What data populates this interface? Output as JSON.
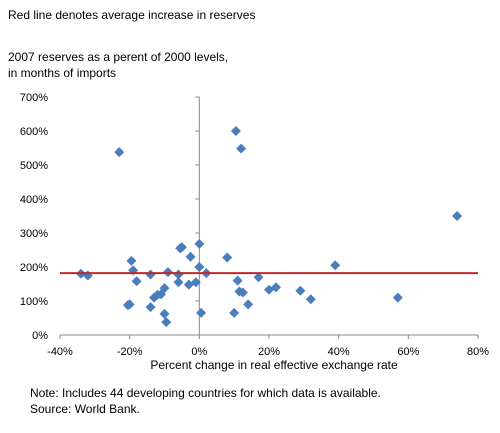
{
  "header": {
    "subtitle": "Red line denotes average increase in reserves",
    "ylabel_line1": "2007 reserves as a perent of 2000 levels,",
    "ylabel_line2": "in months of imports"
  },
  "footer": {
    "note": "Note: Includes 44 developing countries for which data is available.",
    "source": "Source: World Bank."
  },
  "colors": {
    "marker": "#4a7ebb",
    "average_line": "#c0282b",
    "axis": "#888888"
  },
  "chart_data": {
    "type": "scatter",
    "title": "",
    "subtitle": "Red line denotes average increase in reserves",
    "xlabel": "Percent change in real effective exchange rate",
    "ylabel": "2007 reserves as a perent of 2000 levels, in months of imports",
    "xlim": [
      -40,
      80
    ],
    "ylim": [
      0,
      700
    ],
    "x_ticks": [
      -40,
      -20,
      0,
      20,
      40,
      60,
      80
    ],
    "y_ticks": [
      0,
      100,
      200,
      300,
      400,
      500,
      600,
      700
    ],
    "x_tick_labels": [
      "-40%",
      "-20%",
      "0%",
      "20%",
      "40%",
      "60%",
      "80%"
    ],
    "y_tick_labels": [
      "0%",
      "100%",
      "200%",
      "300%",
      "400%",
      "500%",
      "600%",
      "700%"
    ],
    "grid": false,
    "average_line": {
      "y": 182
    },
    "series": [
      {
        "points": [
          [
            -34,
            180
          ],
          [
            -32,
            175
          ],
          [
            -23,
            538
          ],
          [
            -20,
            90
          ],
          [
            -20.5,
            88
          ],
          [
            -19.5,
            218
          ],
          [
            -19,
            190
          ],
          [
            -18,
            158
          ],
          [
            -14,
            82
          ],
          [
            -14,
            178
          ],
          [
            -13,
            110
          ],
          [
            -12,
            118
          ],
          [
            -11,
            120
          ],
          [
            -10,
            62
          ],
          [
            -10,
            138
          ],
          [
            -9.5,
            38
          ],
          [
            -9,
            185
          ],
          [
            -6,
            155
          ],
          [
            -6,
            178
          ],
          [
            -5,
            258
          ],
          [
            -5.5,
            255
          ],
          [
            -3,
            148
          ],
          [
            -2.5,
            230
          ],
          [
            -1,
            155
          ],
          [
            0,
            268
          ],
          [
            0,
            200
          ],
          [
            0.5,
            65
          ],
          [
            2,
            182
          ],
          [
            8,
            228
          ],
          [
            10,
            65
          ],
          [
            10.5,
            600
          ],
          [
            11,
            160
          ],
          [
            11.5,
            128
          ],
          [
            12,
            548
          ],
          [
            12.5,
            125
          ],
          [
            14,
            90
          ],
          [
            17,
            170
          ],
          [
            20,
            133
          ],
          [
            22,
            140
          ],
          [
            29,
            130
          ],
          [
            32,
            105
          ],
          [
            39,
            205
          ],
          [
            57,
            110
          ],
          [
            74,
            350
          ]
        ]
      }
    ]
  }
}
